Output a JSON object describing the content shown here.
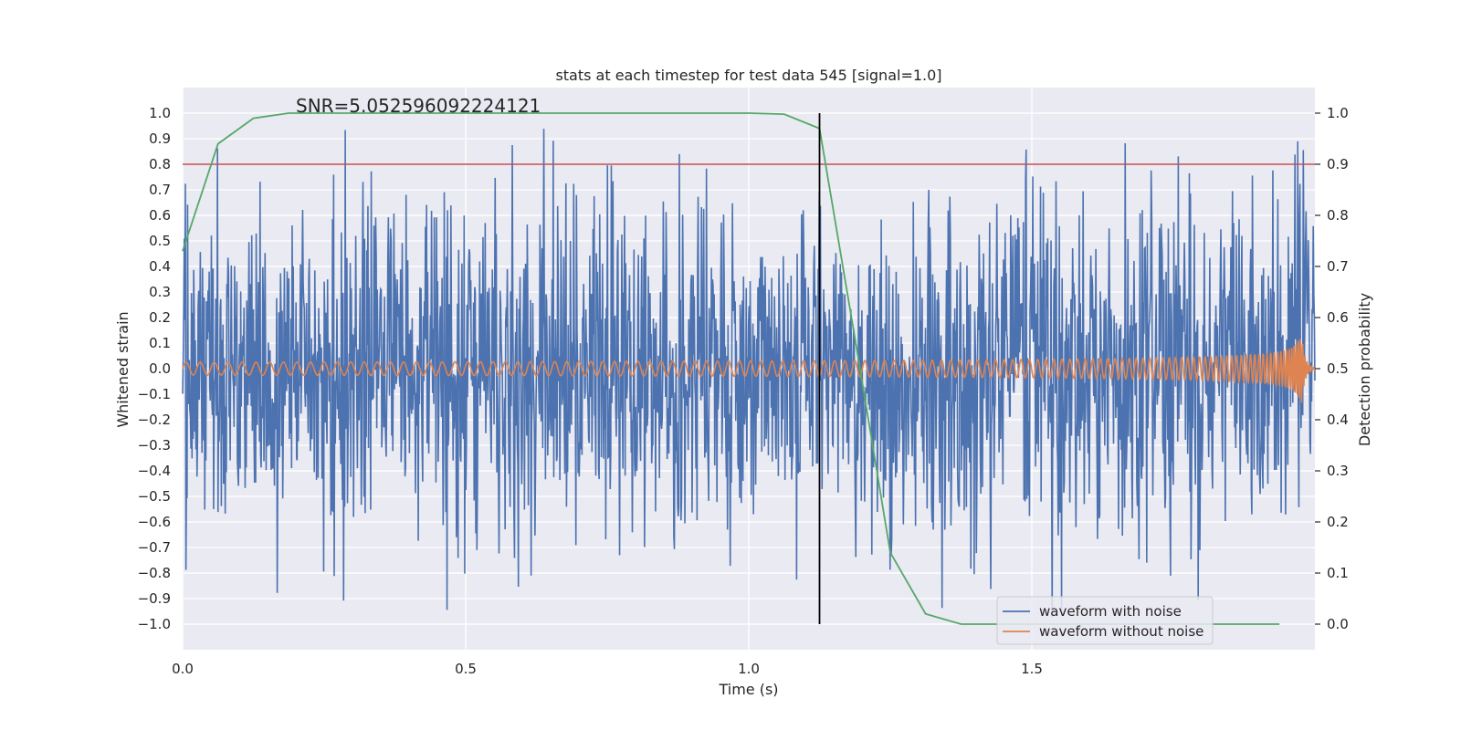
{
  "chart_data": {
    "type": "line",
    "title": "stats at each timestep for test data 545 [signal=1.0]",
    "annotation": "SNR=5.052596092224121",
    "xlabel": "Time (s)",
    "ylabel_left": "Whitened strain",
    "ylabel_right": "Detection probability",
    "xlim": [
      0.0,
      2.0
    ],
    "ylim_left": [
      -1.1,
      1.1
    ],
    "ylim_right": [
      -0.05,
      1.05
    ],
    "x_ticks": [
      "0.0",
      "0.5",
      "1.0",
      "1.5"
    ],
    "y_left_ticks": [
      "1.0",
      "0.9",
      "0.8",
      "0.7",
      "0.6",
      "0.5",
      "0.4",
      "0.3",
      "0.2",
      "0.1",
      "0.0",
      "−0.1",
      "−0.2",
      "−0.3",
      "−0.4",
      "−0.5",
      "−0.6",
      "−0.7",
      "−0.8",
      "−0.9",
      "−1.0"
    ],
    "y_right_ticks": [
      "1.0",
      "0.9",
      "0.8",
      "0.7",
      "0.6",
      "0.5",
      "0.4",
      "0.3",
      "0.2",
      "0.1",
      "0.0"
    ],
    "threshold_line": {
      "axis": "right",
      "value": 0.9,
      "color": "#c44e52"
    },
    "vertical_marker": {
      "x": 1.125,
      "color": "#000000"
    },
    "series": [
      {
        "name": "waveform with noise",
        "axis": "left",
        "color": "#4c72b0",
        "x_range": [
          0.0,
          2.0
        ],
        "n_samples": 2048,
        "noise_amplitude": 0.33,
        "description_peak_max": 0.94,
        "description_peak_min": -0.98
      },
      {
        "name": "waveform without noise",
        "axis": "left",
        "color": "#dd8452",
        "x_range": [
          0.0,
          2.0
        ],
        "start_amplitude": 0.025,
        "start_frequency_hz": 40,
        "peak_time": 1.975,
        "peak_amplitude": 0.17
      },
      {
        "name": "detection probability",
        "axis": "right",
        "color": "#55a868",
        "x": [
          0.0,
          0.0625,
          0.125,
          0.1875,
          0.25,
          0.3125,
          0.375,
          0.4375,
          0.5,
          0.5625,
          0.625,
          0.6875,
          0.75,
          0.8125,
          0.875,
          0.9375,
          1.0,
          1.0625,
          1.125,
          1.1875,
          1.25,
          1.3125,
          1.375,
          1.4375,
          1.5,
          1.5625,
          1.625,
          1.6875,
          1.75,
          1.8125,
          1.875,
          1.9375
        ],
        "y": [
          0.73,
          0.94,
          0.99,
          1.0,
          1.0,
          1.0,
          1.0,
          1.0,
          1.0,
          1.0,
          1.0,
          1.0,
          1.0,
          1.0,
          1.0,
          1.0,
          1.0,
          0.998,
          0.97,
          0.56,
          0.14,
          0.02,
          0.0,
          0.0,
          0.0,
          0.0,
          0.0,
          0.0,
          0.0,
          0.0,
          0.0,
          0.0
        ]
      }
    ],
    "legend": {
      "position": "lower-right",
      "entries": [
        {
          "label": "waveform with noise",
          "color": "#4c72b0"
        },
        {
          "label": "waveform without noise",
          "color": "#dd8452"
        }
      ]
    },
    "style": {
      "plot_background": "#eaeaf2",
      "grid_color": "#ffffff"
    }
  }
}
